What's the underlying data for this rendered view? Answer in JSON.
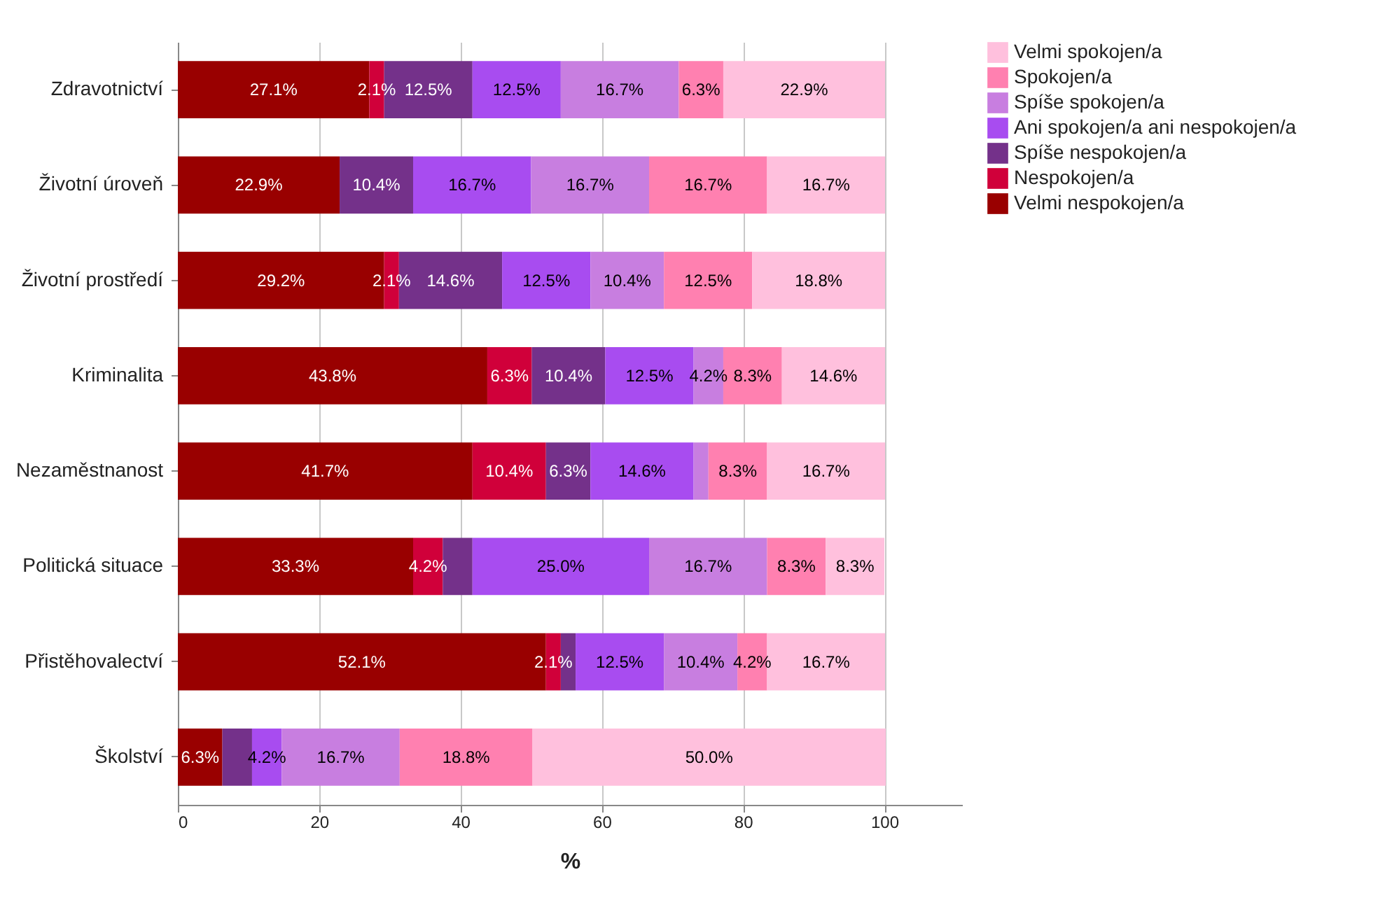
{
  "chart_data": {
    "type": "bar",
    "orientation": "horizontal",
    "stacked": true,
    "categories": [
      "Zdravotnictví",
      "Životní úroveň",
      "Životní prostředí",
      "Kriminalita",
      "Nezaměstnanost",
      "Politická situace",
      "Přistěhovalectví",
      "Školství"
    ],
    "series": [
      {
        "name": "Velmi nespokojen/a",
        "color": "#990000",
        "values": [
          27.1,
          22.9,
          29.2,
          43.8,
          41.7,
          33.3,
          52.1,
          6.3
        ],
        "value_labels": [
          "27.1%",
          "22.9%",
          "29.2%",
          "43.8%",
          "41.7%",
          "33.3%",
          "52.1%",
          "6.3%"
        ]
      },
      {
        "name": "Nespokojen/a",
        "color": "#d0003a",
        "values": [
          2.1,
          null,
          2.1,
          6.3,
          10.4,
          4.2,
          2.1,
          null
        ],
        "value_labels": [
          "2.1%",
          null,
          "2.1%",
          "6.3%",
          "10.4%",
          "4.2%",
          "2.1%",
          null
        ]
      },
      {
        "name": "Spíše nespokojen/a",
        "color": "#74318a",
        "values": [
          12.5,
          10.4,
          14.6,
          10.4,
          6.3,
          4.2,
          2.1,
          4.2
        ],
        "value_labels": [
          "12.5%",
          "10.4%",
          "14.6%",
          "10.4%",
          "6.3%",
          null,
          null,
          null
        ]
      },
      {
        "name": "Ani spokojen/a ani nespokojen/a",
        "color": "#a84cf0",
        "values": [
          12.5,
          16.7,
          12.5,
          12.5,
          14.6,
          25.0,
          12.5,
          4.2
        ],
        "value_labels": [
          "12.5%",
          "16.7%",
          "12.5%",
          "12.5%",
          "14.6%",
          "25.0%",
          "12.5%",
          "4.2%"
        ]
      },
      {
        "name": "Spíše spokojen/a",
        "color": "#c87ee0",
        "values": [
          16.7,
          16.7,
          10.4,
          4.2,
          2.1,
          16.7,
          10.4,
          16.7
        ],
        "value_labels": [
          "16.7%",
          "16.7%",
          "10.4%",
          "4.2%",
          null,
          "16.7%",
          "10.4%",
          "16.7%"
        ]
      },
      {
        "name": "Spokojen/a",
        "color": "#ff80b0",
        "values": [
          6.3,
          16.7,
          12.5,
          8.3,
          8.3,
          8.3,
          4.2,
          18.8
        ],
        "value_labels": [
          "6.3%",
          "16.7%",
          "12.5%",
          "8.3%",
          "8.3%",
          "8.3%",
          "4.2%",
          "18.8%"
        ]
      },
      {
        "name": "Velmi spokojen/a",
        "color": "#ffc0dd",
        "values": [
          22.9,
          16.7,
          18.8,
          14.6,
          16.7,
          8.3,
          16.7,
          50.0
        ],
        "value_labels": [
          "22.9%",
          "16.7%",
          "18.8%",
          "14.6%",
          "16.7%",
          "8.3%",
          "16.7%",
          "50.0%"
        ]
      }
    ],
    "xlabel": "%",
    "xlim": [
      0,
      111
    ],
    "xticks": [
      0,
      20,
      40,
      60,
      80,
      100
    ],
    "grid": "x",
    "legend": "right"
  }
}
